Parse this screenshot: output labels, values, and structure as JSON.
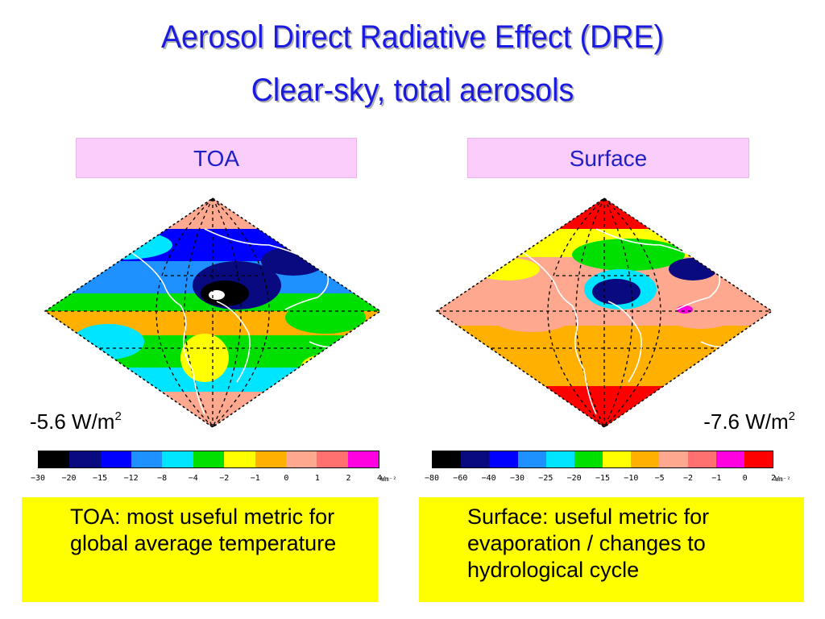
{
  "slide": {
    "title_line1": "Aerosol Direct Radiative Effect (DRE)",
    "title_line2": "Clear-sky, total aerosols",
    "colors": {
      "title": "#1a1ae0",
      "label_bg": "#fbcdfb",
      "note_bg": "#ffff00"
    }
  },
  "panels": [
    {
      "label": "TOA",
      "global_mean": "-5.6 W/m",
      "global_mean_sup": "2",
      "colorbar": {
        "colors": [
          "#000000",
          "#0a0a80",
          "#0000ff",
          "#1e90ff",
          "#00e5ff",
          "#00e000",
          "#ffff00",
          "#ffb000",
          "#ffa890",
          "#ff7070",
          "#ff00e0"
        ],
        "ticks": [
          "−30",
          "−20",
          "−15",
          "−12",
          "−8",
          "−4",
          "−2",
          "−1",
          "0",
          "1",
          "2",
          "4"
        ],
        "unit": "Wm⁻²"
      },
      "note": "TOA: most useful metric for global average temperature"
    },
    {
      "label": "Surface",
      "global_mean": "-7.6 W/m",
      "global_mean_sup": "2",
      "colorbar": {
        "colors": [
          "#000000",
          "#0a0a80",
          "#0000ff",
          "#1e90ff",
          "#00e5ff",
          "#00e000",
          "#ffff00",
          "#ffb000",
          "#ffa890",
          "#ff7070",
          "#ff00e0",
          "#ff0000"
        ],
        "ticks": [
          "−80",
          "−60",
          "−40",
          "−30",
          "−25",
          "−20",
          "−15",
          "−10",
          "−5",
          "−2",
          "−1",
          "0",
          "2"
        ],
        "unit": "Wm⁻²"
      },
      "note": "Surface: useful metric for evaporation / changes to hydrological cycle"
    }
  ]
}
